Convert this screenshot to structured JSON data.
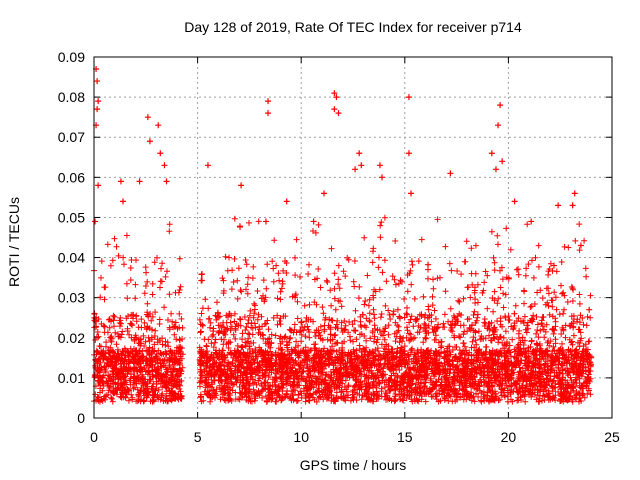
{
  "chart_data": {
    "type": "scatter",
    "title": "Day 128 of 2019, Rate Of TEC Index for receiver p714",
    "xlabel": "GPS time / hours",
    "ylabel": "ROTI / TECUs",
    "xlim": [
      0,
      25
    ],
    "ylim": [
      0,
      0.09
    ],
    "x_ticks": [
      0,
      5,
      10,
      15,
      20,
      25
    ],
    "y_ticks": [
      0,
      0.01,
      0.02,
      0.03,
      0.04,
      0.05,
      0.06,
      0.07,
      0.08,
      0.09
    ],
    "x_tick_labels": [
      "0",
      "5",
      "10",
      "15",
      "20",
      "25"
    ],
    "y_tick_labels": [
      "0",
      "0.01",
      "0.02",
      "0.03",
      "0.04",
      "0.05",
      "0.06",
      "0.07",
      "0.08",
      "0.09"
    ],
    "grid": true,
    "legend": "none",
    "marker": "plus",
    "color": "#ff0000",
    "data_gap_hours": [
      4.3,
      5.1
    ],
    "notable_points": [
      {
        "x": 0.1,
        "y": 0.087
      },
      {
        "x": 0.15,
        "y": 0.084
      },
      {
        "x": 0.2,
        "y": 0.079
      },
      {
        "x": 0.15,
        "y": 0.077
      },
      {
        "x": 0.1,
        "y": 0.073
      },
      {
        "x": 0.05,
        "y": 0.049
      },
      {
        "x": 0.2,
        "y": 0.058
      },
      {
        "x": 1.3,
        "y": 0.059
      },
      {
        "x": 1.4,
        "y": 0.054
      },
      {
        "x": 2.2,
        "y": 0.059
      },
      {
        "x": 2.6,
        "y": 0.075
      },
      {
        "x": 2.7,
        "y": 0.069
      },
      {
        "x": 3.1,
        "y": 0.073
      },
      {
        "x": 3.2,
        "y": 0.066
      },
      {
        "x": 3.4,
        "y": 0.063
      },
      {
        "x": 3.5,
        "y": 0.059
      },
      {
        "x": 5.5,
        "y": 0.063
      },
      {
        "x": 7.1,
        "y": 0.058
      },
      {
        "x": 8.4,
        "y": 0.079
      },
      {
        "x": 8.4,
        "y": 0.076
      },
      {
        "x": 8.3,
        "y": 0.049
      },
      {
        "x": 9.3,
        "y": 0.054
      },
      {
        "x": 10.6,
        "y": 0.049
      },
      {
        "x": 11.1,
        "y": 0.056
      },
      {
        "x": 11.6,
        "y": 0.081
      },
      {
        "x": 11.7,
        "y": 0.08
      },
      {
        "x": 11.6,
        "y": 0.077
      },
      {
        "x": 11.8,
        "y": 0.076
      },
      {
        "x": 12.6,
        "y": 0.062
      },
      {
        "x": 12.8,
        "y": 0.066
      },
      {
        "x": 12.9,
        "y": 0.063
      },
      {
        "x": 13.8,
        "y": 0.063
      },
      {
        "x": 13.9,
        "y": 0.06
      },
      {
        "x": 15.2,
        "y": 0.08
      },
      {
        "x": 15.2,
        "y": 0.066
      },
      {
        "x": 15.3,
        "y": 0.056
      },
      {
        "x": 17.2,
        "y": 0.061
      },
      {
        "x": 19.2,
        "y": 0.066
      },
      {
        "x": 19.4,
        "y": 0.062
      },
      {
        "x": 19.5,
        "y": 0.073
      },
      {
        "x": 19.6,
        "y": 0.078
      },
      {
        "x": 19.7,
        "y": 0.064
      },
      {
        "x": 20.3,
        "y": 0.054
      },
      {
        "x": 21.1,
        "y": 0.049
      },
      {
        "x": 22.4,
        "y": 0.053
      },
      {
        "x": 23.1,
        "y": 0.053
      },
      {
        "x": 23.2,
        "y": 0.056
      },
      {
        "x": 23.5,
        "y": 0.043
      },
      {
        "x": 22.2,
        "y": 0.038
      },
      {
        "x": 23.9,
        "y": 0.027
      }
    ]
  }
}
